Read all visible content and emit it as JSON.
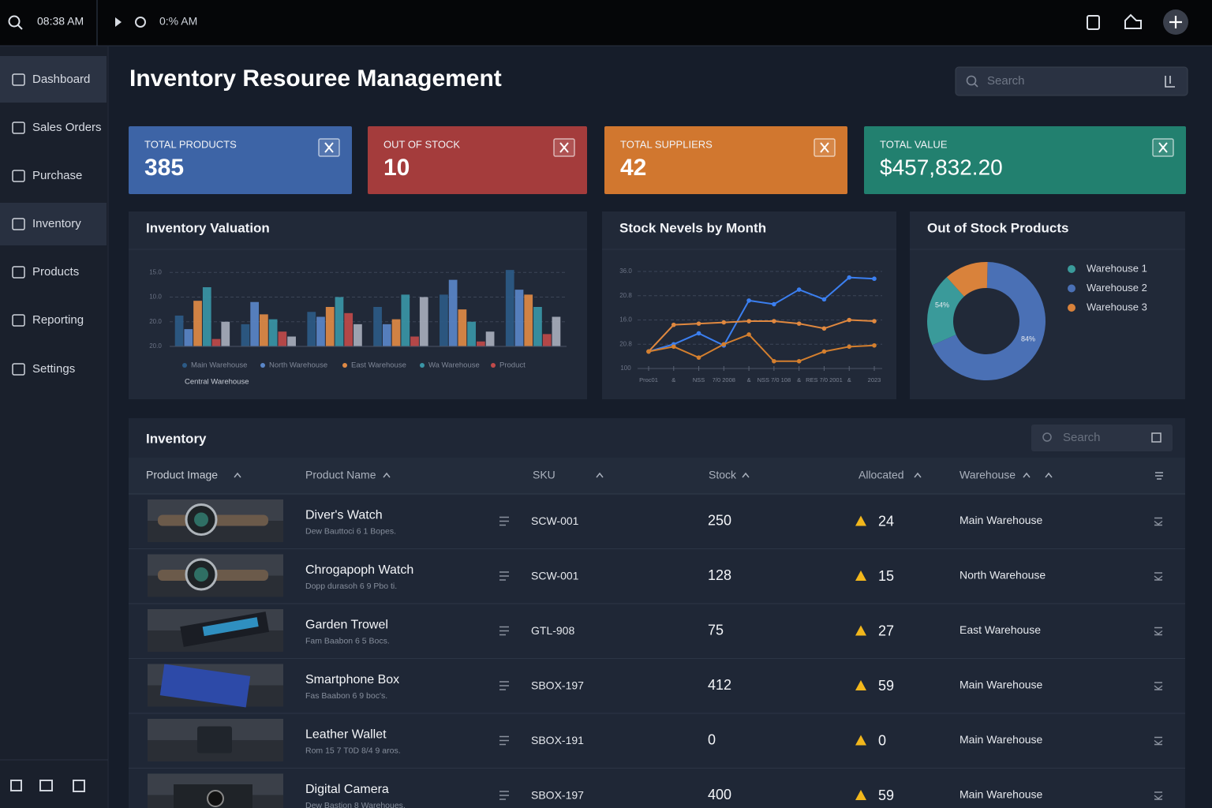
{
  "topbar": {
    "time": "08:38 AM",
    "status": "0:% AM"
  },
  "sidebar": {
    "items": [
      "Dashboard",
      "Sales Orders",
      "Purchase",
      "Inventory",
      "Products",
      "Reporting",
      "Settings"
    ]
  },
  "header": {
    "title": "Inventory Resouree Management",
    "search_placeholder": "Search"
  },
  "cards": [
    {
      "label": "TOTAL PRODUCTS",
      "value": 385,
      "color": "#3d64a6"
    },
    {
      "label": "OUT OF STOCK",
      "value": 10,
      "color": "#a43c3c"
    },
    {
      "label": "TOTAL SUPPLIERS",
      "value": 42,
      "color": "#d1772f"
    },
    {
      "label": "TOTAL VALUE",
      "value": "$457,832.20",
      "color": "#22806f"
    }
  ],
  "charts": [
    {
      "type": "bar",
      "title": "Inventory Valuation",
      "categories": [
        null,
        null,
        null,
        null,
        null,
        null
      ],
      "series": [
        {
          "name": "Main Warehouse",
          "color": "#2c5a86",
          "values": [
            1.25,
            0.9,
            1.4,
            1.6,
            2.1,
            3.1
          ]
        },
        {
          "name": "North Warehouse",
          "color": "#5a86c8",
          "values": [
            0.7,
            1.8,
            1.2,
            0.9,
            2.7,
            2.3
          ]
        },
        {
          "name": "East Warehouse",
          "color": "#e08a45",
          "values": [
            1.85,
            1.3,
            1.6,
            1.1,
            1.5,
            2.1
          ]
        },
        {
          "name": "Wa Warehouse",
          "color": "#3a95a6",
          "values": [
            2.4,
            1.1,
            2.0,
            2.1,
            1.0,
            1.6
          ]
        },
        {
          "name": "Product",
          "color": "#c04a4a",
          "values": [
            0.3,
            0.6,
            1.35,
            0.4,
            0.2,
            0.5
          ]
        },
        {
          "name": "Central Warehouse",
          "color": "#a7adbb",
          "values": [
            1.0,
            0.4,
            0.9,
            2.0,
            0.6,
            1.2
          ]
        }
      ],
      "ylim": [
        0,
        3.2
      ],
      "yticks": [
        {
          "value": 0,
          "label": "20.0"
        },
        {
          "value": 1,
          "label": "20.0"
        },
        {
          "value": 2,
          "label": "10.0"
        },
        {
          "value": 3,
          "label": "15.0"
        }
      ],
      "grid": true
    },
    {
      "type": "line",
      "title": "Stock Nevels by Month",
      "categories": [
        "Proc01",
        "&",
        "NSS",
        "7/0 2008",
        "&",
        "NSS 7/0 108",
        "&",
        "RES 7/0 2001",
        "&",
        "2023"
      ],
      "series": [
        {
          "color": "#3b7ff0",
          "values": [
            0.7,
            1.0,
            1.45,
            0.95,
            2.8,
            2.65,
            3.25,
            2.85,
            3.75,
            3.7
          ]
        },
        {
          "color": "#e0883f",
          "values": [
            0.7,
            1.8,
            1.85,
            1.9,
            1.95,
            1.95,
            1.85,
            1.65,
            2.0,
            1.95
          ]
        },
        {
          "color": "#d47f2e",
          "values": [
            0.7,
            0.9,
            0.45,
            1.0,
            1.4,
            0.3,
            0.3,
            0.7,
            0.9,
            0.95
          ]
        }
      ],
      "ylim": [
        0,
        4
      ],
      "yticks": [
        {
          "value": 0,
          "label": "100"
        },
        {
          "value": 1,
          "label": "20.8"
        },
        {
          "value": 2,
          "label": "16.0"
        },
        {
          "value": 3,
          "label": "20.8"
        },
        {
          "value": 4,
          "label": "36.0"
        }
      ],
      "grid": true
    },
    {
      "type": "pie",
      "title": "Out of Stock Products",
      "categories": [
        "Warehouse 1",
        "Warehouse 2",
        "Warehouse 3"
      ],
      "values": [
        20,
        68,
        12
      ],
      "colors": [
        "#3a9a9a",
        "#4a70b5",
        "#d9823b"
      ],
      "annotations": [
        "54%",
        "84%"
      ]
    }
  ],
  "table": {
    "title": "Inventory",
    "search_placeholder": "Search",
    "columns": [
      "Product Image",
      "Product Name",
      "SKU",
      "Stock",
      "Allocated",
      "Warehouse"
    ],
    "rows": [
      [
        "Diver's Watch",
        "Dew Bauttoci 6 1 Bopes.",
        "SCW-001",
        250,
        24,
        "Main Warehouse"
      ],
      [
        "Chrogapoph Watch",
        "Dopp durasoh 6 9 Pbo ti.",
        "SCW-001",
        128,
        15,
        "North Warehouse"
      ],
      [
        "Garden Trowel",
        "Fam Baabon 6 5 Bocs.",
        "GTL-908",
        75,
        27,
        "East Warehouse"
      ],
      [
        "Smartphone Box",
        "Fas Baabon 6 9 boc's.",
        "SBOX-197",
        412,
        59,
        "Main Warehouse"
      ],
      [
        "Leather Wallet",
        "Rom 15 7 T0D 8/4 9 aros.",
        "SBOX-191",
        0,
        0,
        "Main Warehouse"
      ],
      [
        "Digital Camera",
        "Dew Bastion 8 Warehoues.",
        "SBOX-197",
        400,
        59,
        "Main Warehouse"
      ]
    ]
  }
}
